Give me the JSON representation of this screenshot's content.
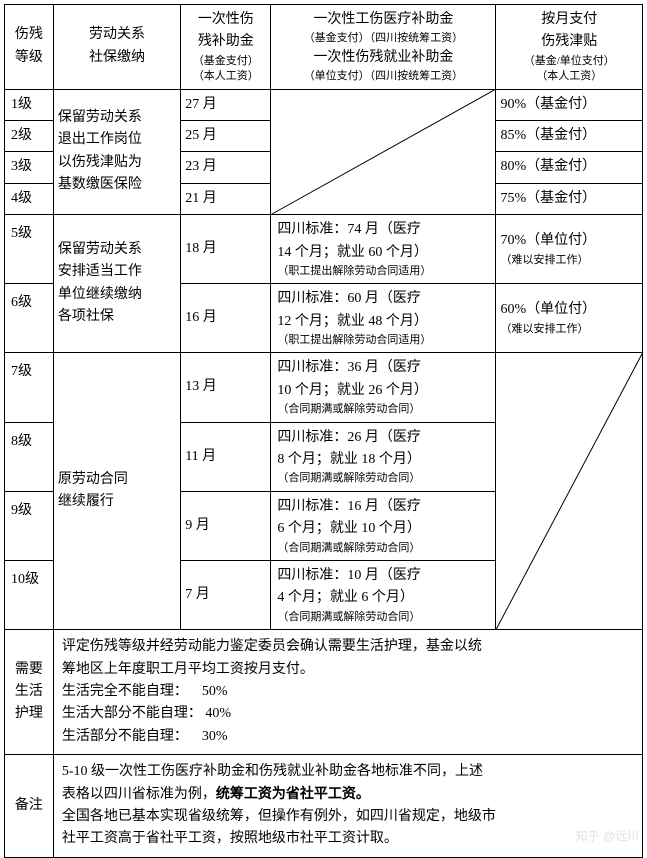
{
  "headers": {
    "col1_line1": "伤残",
    "col1_line2": "等级",
    "col2_line1": "劳动关系",
    "col2_line2": "社保缴纳",
    "col3_line1": "一次性伤",
    "col3_line2": "残补助金",
    "col3_sub1": "（基金支付）",
    "col3_sub2": "（本人工资）",
    "col4_line1": "一次性工伤医疗补助金",
    "col4_sub1": "（基金支付）（四川按统筹工资）",
    "col4_line2": "一次性伤残就业补助金",
    "col4_sub2": "（单位支付）（四川按统筹工资）",
    "col5_line1": "按月支付",
    "col5_line2": "伤残津贴",
    "col5_sub1": "（基金/单位支付）",
    "col5_sub2": "（本人工资）"
  },
  "group1_labor": {
    "l1": "保留劳动关系",
    "l2": "退出工作岗位",
    "l3": "以伤残津贴为",
    "l4": "基数缴医保险"
  },
  "group2_labor": {
    "l1": "保留劳动关系",
    "l2": "安排适当工作",
    "l3": "单位继续缴纳",
    "l4": "各项社保"
  },
  "group3_labor": {
    "l1": "原劳动合同",
    "l2": "继续履行"
  },
  "rows": {
    "r1": {
      "grade": "1级",
      "months": "27 月",
      "allow": "90%（基金付）"
    },
    "r2": {
      "grade": "2级",
      "months": "25 月",
      "allow": "85%（基金付）"
    },
    "r3": {
      "grade": "3级",
      "months": "23 月",
      "allow": "80%（基金付）"
    },
    "r4": {
      "grade": "4级",
      "months": "21 月",
      "allow": "75%（基金付）"
    },
    "r5": {
      "grade": "5级",
      "months": "18 月",
      "std1": "四川标准：74 月（医疗",
      "std2": "14 个月；就业 60 个月）",
      "std_sub": "（职工提出解除劳动合同适用）",
      "allow": "70%（单位付）",
      "allow_sub": "（难以安排工作）"
    },
    "r6": {
      "grade": "6级",
      "months": "16 月",
      "std1": "四川标准：60 月（医疗",
      "std2": "12 个月；就业 48 个月）",
      "std_sub": "（职工提出解除劳动合同适用）",
      "allow": "60%（单位付）",
      "allow_sub": "（难以安排工作）"
    },
    "r7": {
      "grade": "7级",
      "months": "13 月",
      "std1": "四川标准：36 月（医疗",
      "std2": "10 个月；就业 26 个月）",
      "std_sub": "（合同期满或解除劳动合同）"
    },
    "r8": {
      "grade": "8级",
      "months": "11 月",
      "std1": "四川标准：26 月（医疗",
      "std2": "8 个月；就业 18 个月）",
      "std_sub": "（合同期满或解除劳动合同）"
    },
    "r9": {
      "grade": "9级",
      "months": "9 月",
      "std1": "四川标准：16 月（医疗",
      "std2": "6 个月；就业 10 个月）",
      "std_sub": "（合同期满或解除劳动合同）"
    },
    "r10": {
      "grade": "10级",
      "months": "7 月",
      "std1": "四川标准：10 月（医疗",
      "std2": "4 个月；就业 6 个月）",
      "std_sub": "（合同期满或解除劳动合同）"
    }
  },
  "care": {
    "label_l1": "需要",
    "label_l2": "生活",
    "label_l3": "护理",
    "l1": "评定伤残等级并经劳动能力鉴定委员会确认需要生活护理，基金以统",
    "l2": "筹地区上年度职工月平均工资按月支付。",
    "l3": "生活完全不能自理：    50%",
    "l4": "生活大部分不能自理： 40%",
    "l5": "生活部分不能自理：    30%"
  },
  "note": {
    "label": "备注",
    "l1": "5-10 级一次性工伤医疗补助金和伤残就业补助金各地标准不同，上述",
    "l2a": "表格以四川省标准为例，",
    "l2b": "统筹工资为省社平工资。",
    "l3": "全国各地已基本实现省级统筹，但操作有例外，如四川省规定，地级市",
    "l4": "社平工资高于省社平工资，按照地级市社平工资计取。"
  },
  "watermark": "知乎 @远川",
  "colors": {
    "border": "#000000",
    "text": "#000000",
    "bg": "#ffffff",
    "watermark": "#cccccc"
  }
}
